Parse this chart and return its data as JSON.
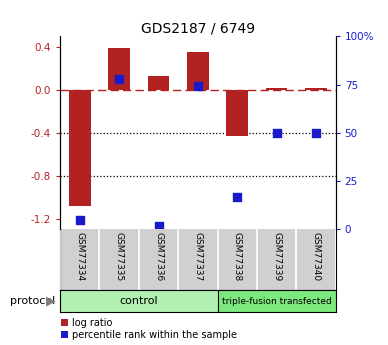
{
  "title": "GDS2187 / 6749",
  "samples": [
    "GSM77334",
    "GSM77335",
    "GSM77336",
    "GSM77337",
    "GSM77338",
    "GSM77339",
    "GSM77340"
  ],
  "log_ratio": [
    -1.08,
    0.39,
    0.13,
    0.35,
    -0.43,
    0.02,
    0.02
  ],
  "percentile_rank": [
    5,
    78,
    2,
    74,
    17,
    50,
    50
  ],
  "ylim_left": [
    -1.3,
    0.5
  ],
  "ylim_right": [
    0,
    100
  ],
  "yticks_left": [
    -1.2,
    -0.8,
    -0.4,
    0.0,
    0.4
  ],
  "yticks_right": [
    0,
    25,
    50,
    75,
    100
  ],
  "bar_color": "#b22222",
  "dot_color": "#1a1acd",
  "dotted_lines": [
    -0.4,
    -0.8
  ],
  "control_count": 4,
  "control_label": "control",
  "transfected_label": "triple-fusion transfected",
  "protocol_label": "protocol",
  "control_color": "#b2f0b2",
  "transfected_color": "#7de87d",
  "sample_bg_color": "#d0d0d0",
  "legend_items": [
    {
      "label": "log ratio",
      "color": "#b22222"
    },
    {
      "label": "percentile rank within the sample",
      "color": "#1a1acd"
    }
  ],
  "bar_width": 0.55,
  "dot_size": 40
}
